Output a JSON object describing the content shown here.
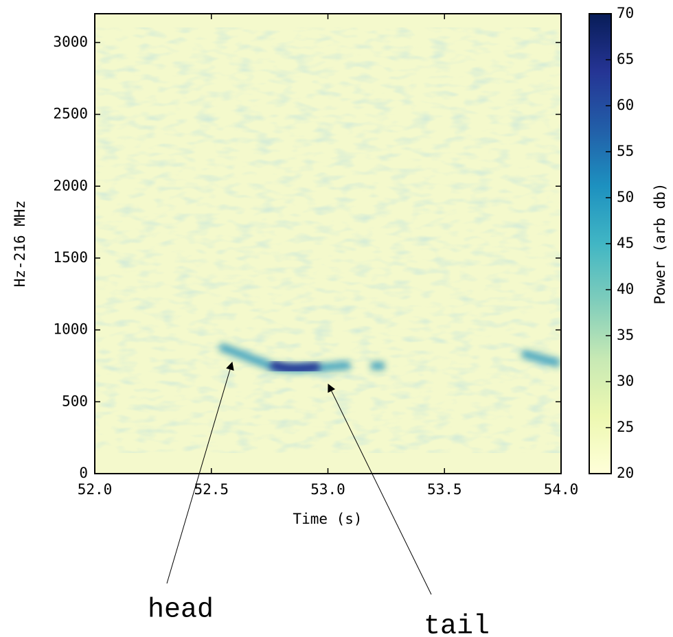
{
  "chart_data": {
    "type": "spectrogram",
    "xlabel": "Time (s)",
    "ylabel": "Hz-216 MHz",
    "xlim": [
      52,
      54
    ],
    "xticks": [
      {
        "value": 52,
        "label": "52.0"
      },
      52.5,
      {
        "value": 53,
        "label": "53.0"
      },
      53.5,
      {
        "value": 54,
        "label": "54.0"
      }
    ],
    "ylim": [
      0,
      3200
    ],
    "yticks": [
      0,
      500,
      1000,
      1500,
      2000,
      2500,
      3000
    ],
    "colorbar": {
      "label": "Power (arb db)",
      "lim": [
        20,
        70
      ],
      "ticks": [
        20,
        25,
        30,
        35,
        40,
        45,
        50,
        55,
        60,
        65,
        70
      ],
      "colormap": [
        "#ffffd9",
        "#edf8b1",
        "#c7e9b4",
        "#7fcdbb",
        "#41b6c4",
        "#1d91c0",
        "#225ea8",
        "#253494",
        "#081d58"
      ]
    },
    "annotations": [
      {
        "text": "head"
      },
      {
        "text": "tail"
      }
    ]
  }
}
